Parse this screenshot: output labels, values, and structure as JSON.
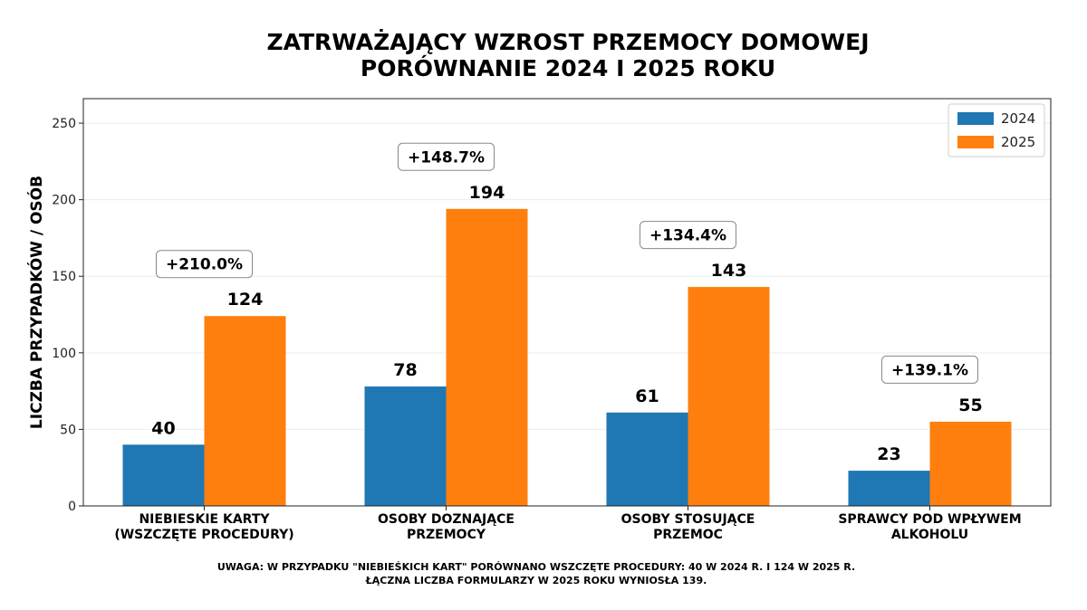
{
  "chart_data": {
    "type": "bar",
    "title": [
      "ZATRWAŻAJĄCY WZROST PRZEMOCY DOMOWEJ",
      "PORÓWNANIE 2024 I 2025 ROKU"
    ],
    "xlabel": "",
    "ylabel": "LICZBA PRZYPADKÓW / OSÓB",
    "ylim": [
      0,
      266
    ],
    "yticks": [
      0,
      50,
      100,
      150,
      200,
      250
    ],
    "grid": true,
    "legend": "top-right",
    "categories": [
      [
        "NIEBIESKIE KARTY",
        "(WSZCZĘTE PROCEDURY)"
      ],
      [
        "OSOBY DOZNAJĄCE",
        "PRZEMOCY"
      ],
      [
        "OSOBY STOSUJĄCE",
        "PRZEMOC"
      ],
      [
        "SPRAWCY POD WPŁYWEM",
        "ALKOHOLU"
      ]
    ],
    "series": [
      {
        "name": "2024",
        "color": "#1f77b4",
        "values": [
          40,
          78,
          61,
          23
        ]
      },
      {
        "name": "2025",
        "color": "#ff7f0e",
        "values": [
          124,
          194,
          143,
          55
        ]
      }
    ],
    "annotations": [
      "+210.0%",
      "+148.7%",
      "+134.4%",
      "+139.1%"
    ],
    "note": [
      "UWAGA: W PRZYPADKU \"NIEBIEŚKICH KART\" PORÓWNANO WSZCZĘTE PROCEDURY: 40 W 2024 R. I 124 W 2025 R.",
      "ŁĄCZNA LICZBA FORMULARZY W 2025 ROKU WYNIOSŁA 139."
    ]
  }
}
